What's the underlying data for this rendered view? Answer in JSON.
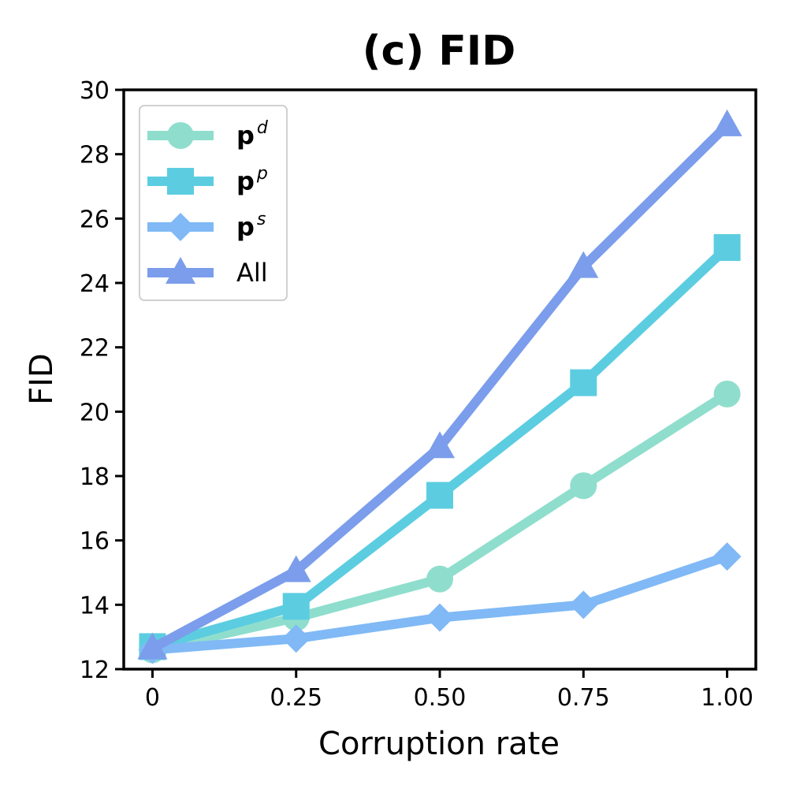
{
  "chart_data": {
    "type": "line",
    "title": "(c) FID",
    "xlabel": "Corruption rate",
    "ylabel": "FID",
    "x": [
      0,
      0.25,
      0.5,
      0.75,
      1.0
    ],
    "x_tick_labels": [
      "0",
      "0.25",
      "0.50",
      "0.75",
      "1.00"
    ],
    "xlim": [
      -0.05,
      1.05
    ],
    "ylim": [
      12,
      30
    ],
    "y_ticks": [
      12,
      14,
      16,
      18,
      20,
      22,
      24,
      26,
      28,
      30
    ],
    "grid": false,
    "legend_position": "upper-left",
    "series": [
      {
        "name": "p",
        "sup": "d",
        "bold": true,
        "marker": "circle",
        "color": "#8fdecd",
        "values": [
          12.6,
          13.6,
          14.8,
          17.7,
          20.55
        ]
      },
      {
        "name": "p",
        "sup": "p",
        "bold": true,
        "marker": "square",
        "color": "#5ccde0",
        "values": [
          12.7,
          13.95,
          17.4,
          20.9,
          25.1
        ]
      },
      {
        "name": "p",
        "sup": "s",
        "bold": true,
        "marker": "diamond",
        "color": "#80b9f5",
        "values": [
          12.6,
          12.95,
          13.6,
          14.0,
          15.5
        ]
      },
      {
        "name": "All",
        "sup": "",
        "bold": false,
        "marker": "triangle",
        "color": "#7b9deb",
        "values": [
          12.65,
          15.05,
          18.9,
          24.5,
          28.9
        ]
      }
    ]
  }
}
